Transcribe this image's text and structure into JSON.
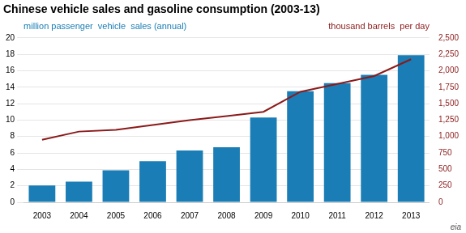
{
  "chart_data": {
    "type": "bar",
    "title": "Chinese vehicle sales and gasoline consumption (2003-13)",
    "y_label": "million passenger  vehicle  sales (annual)",
    "y2_label": "thousand barrels  per day",
    "annotations": [
      "eia"
    ],
    "categories": [
      "2003",
      "2004",
      "2005",
      "2006",
      "2007",
      "2008",
      "2009",
      "2010",
      "2011",
      "2012",
      "2013"
    ],
    "series": [
      {
        "type": "bar",
        "color": "#1a7db5",
        "values": [
          2.05,
          2.5,
          3.9,
          5.0,
          6.3,
          6.7,
          10.3,
          13.5,
          14.5,
          15.5,
          17.9
        ]
      },
      {
        "type": "line",
        "color": "#8b1a1a",
        "axis": "y2",
        "values": [
          950,
          1075,
          1100,
          1175,
          1250,
          1310,
          1375,
          1680,
          1800,
          1920,
          2175
        ]
      }
    ],
    "ylim": [
      0,
      20
    ],
    "yticks": [
      0,
      2,
      4,
      6,
      8,
      10,
      12,
      14,
      16,
      18,
      20
    ],
    "y2lim": [
      0,
      2500
    ],
    "y2ticks": [
      0,
      250,
      500,
      750,
      {
        "value": 1000,
        "label": "1,000"
      },
      {
        "value": 1250,
        "label": "1,250"
      },
      {
        "value": 1500,
        "label": "1,500"
      },
      {
        "value": 1750,
        "label": "1,750"
      },
      {
        "value": 2000,
        "label": "2,000"
      },
      {
        "value": 2250,
        "label": "2,250"
      },
      {
        "value": 2500,
        "label": "2,500"
      }
    ],
    "grid": true
  }
}
